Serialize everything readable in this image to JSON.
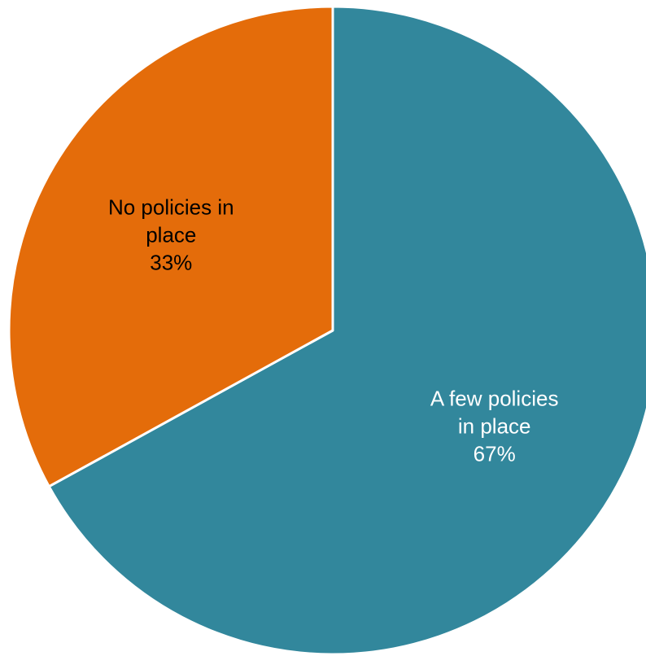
{
  "chart_data": {
    "type": "pie",
    "title": "",
    "start_angle_deg": 0,
    "direction": "clockwise",
    "slices": [
      {
        "label_lines": [
          "A few policies",
          "in place"
        ],
        "percent_label": "67%",
        "value": 67,
        "color": "#32879c",
        "label_color": "#ffffff"
      },
      {
        "label_lines": [
          "No policies in",
          "place"
        ],
        "percent_label": "33%",
        "value": 33,
        "color": "#e46c0a",
        "label_color": "#000000"
      }
    ]
  }
}
